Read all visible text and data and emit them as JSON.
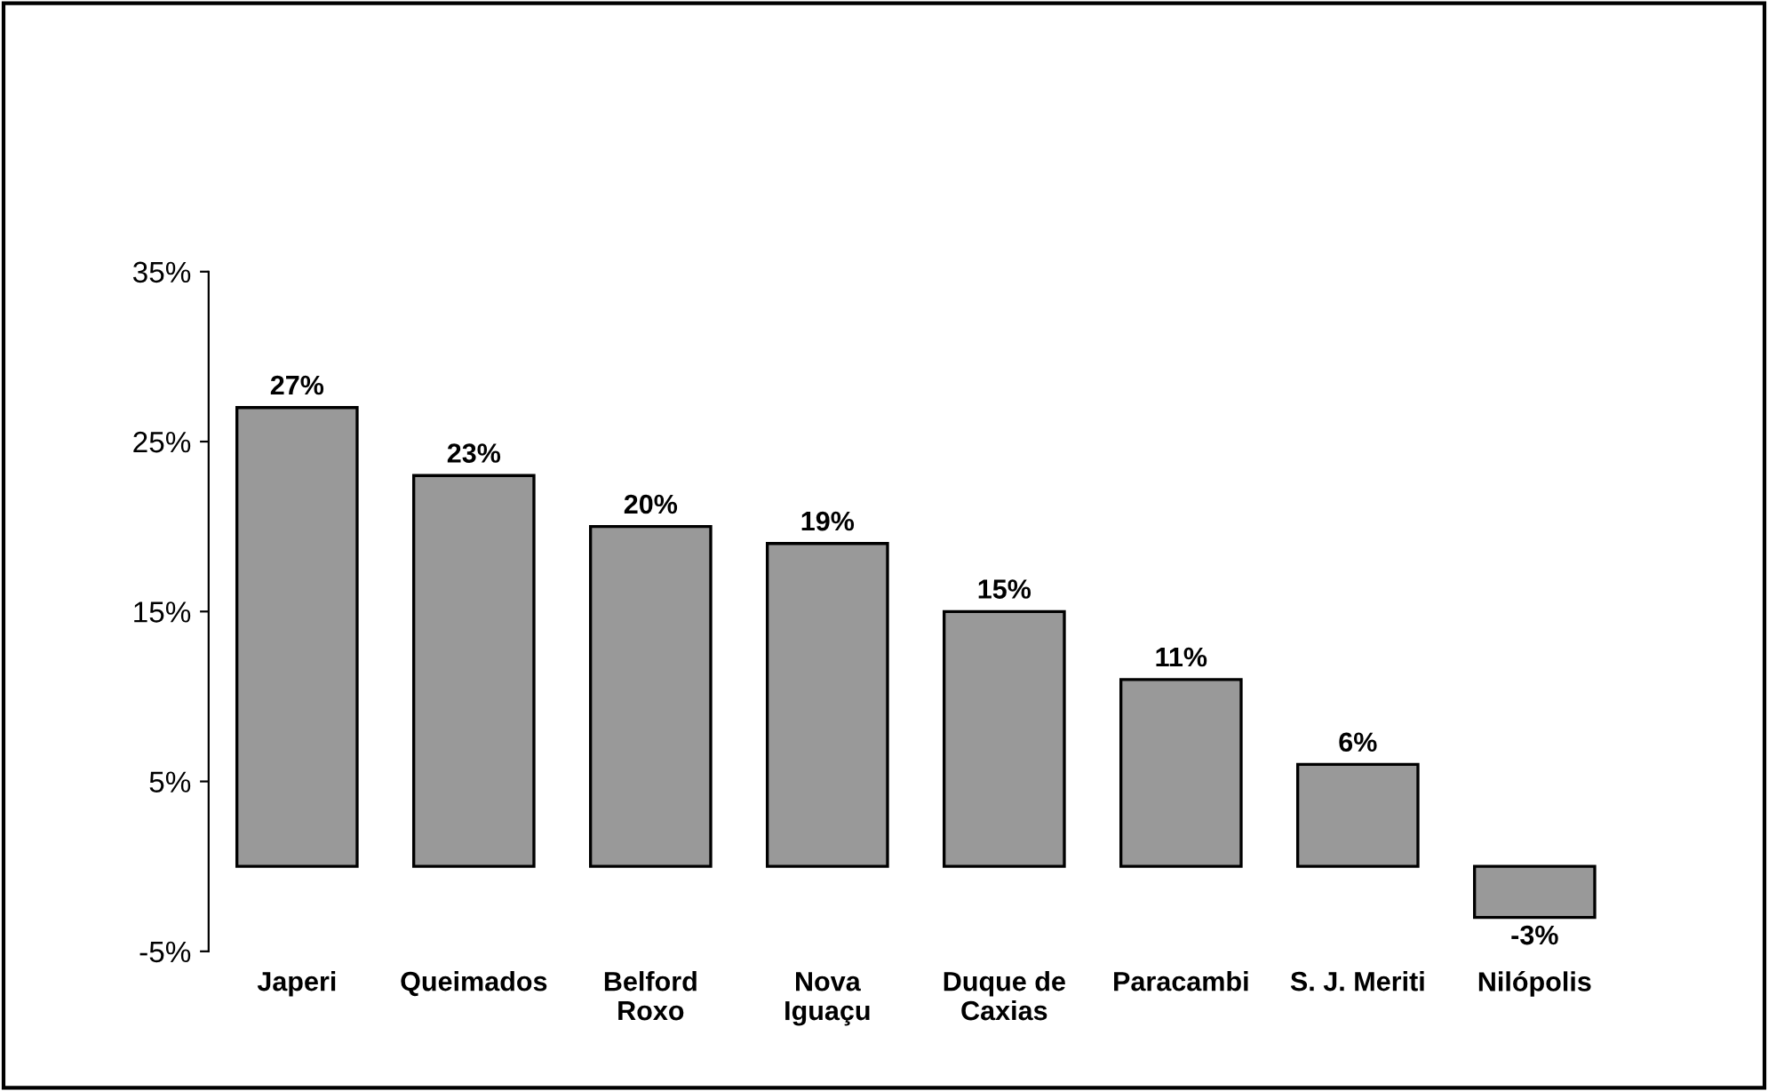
{
  "chart_data": {
    "type": "bar",
    "categories": [
      "Japeri",
      "Queimados",
      "Belford\nRoxo",
      "Nova\nIguaçu",
      "Duque de\nCaxias",
      "Paracambi",
      "S. J. Meriti",
      "Nilópolis"
    ],
    "values": [
      27,
      23,
      20,
      19,
      15,
      11,
      6,
      -3
    ],
    "color": "#999999",
    "value_labels": [
      "27%",
      "23%",
      "20%",
      "19%",
      "15%",
      "11%",
      "6%",
      "-3%"
    ],
    "ylim": [
      -5,
      35
    ],
    "yticks": [
      {
        "value": -5,
        "label": "-5%"
      },
      {
        "value": 5,
        "label": "5%"
      },
      {
        "value": 15,
        "label": "15%"
      },
      {
        "value": 25,
        "label": "25%"
      },
      {
        "value": 35,
        "label": "35%"
      }
    ],
    "grid": false,
    "legend": false
  }
}
